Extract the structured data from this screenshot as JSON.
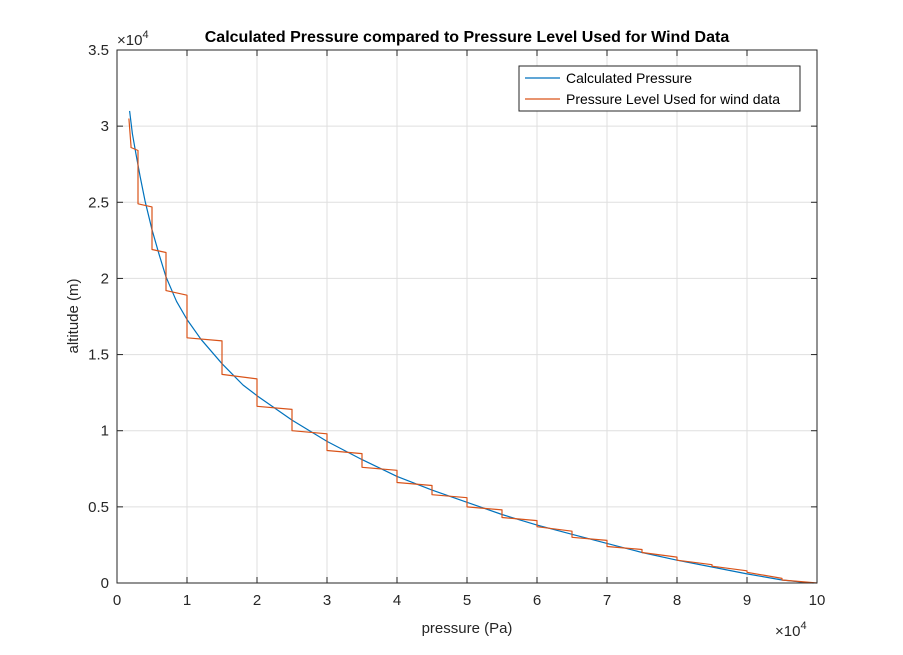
{
  "chart_data": {
    "type": "line",
    "title": "Calculated Pressure compared to Pressure Level Used for Wind Data",
    "xlabel": "pressure (Pa)",
    "ylabel": "altitude (m)",
    "x_exponent_label": "×10",
    "x_exponent": "4",
    "y_exponent_label": "×10",
    "y_exponent": "4",
    "x_scale": 10000,
    "y_scale": 10000,
    "xlim": [
      0,
      100000
    ],
    "ylim": [
      0,
      35000
    ],
    "xticks": [
      0,
      10000,
      20000,
      30000,
      40000,
      50000,
      60000,
      70000,
      80000,
      90000,
      100000
    ],
    "xticklabels": [
      "0",
      "1",
      "2",
      "3",
      "4",
      "5",
      "6",
      "7",
      "8",
      "9",
      "10"
    ],
    "yticks": [
      0,
      5000,
      10000,
      15000,
      20000,
      25000,
      30000,
      35000
    ],
    "yticklabels": [
      "0",
      "0.5",
      "1",
      "1.5",
      "2",
      "2.5",
      "3",
      "3.5"
    ],
    "grid": true,
    "legend_position": "top-right",
    "series": [
      {
        "name": "Calculated Pressure",
        "color": "#0072bd",
        "x": [
          1800,
          2200,
          2700,
          3300,
          4000,
          5000,
          6000,
          7000,
          8500,
          10000,
          12000,
          15000,
          18000,
          20000,
          25000,
          30000,
          35000,
          40000,
          45000,
          50000,
          55000,
          60000,
          65000,
          70000,
          75000,
          80000,
          85000,
          90000,
          95000,
          98000,
          99500
        ],
        "y": [
          31000,
          29500,
          28200,
          26700,
          25100,
          23200,
          21600,
          20100,
          18500,
          17300,
          16000,
          14400,
          13000,
          12300,
          10700,
          9300,
          8100,
          7000,
          6100,
          5300,
          4500,
          3800,
          3200,
          2600,
          2000,
          1500,
          1050,
          600,
          200,
          50,
          0
        ]
      },
      {
        "name": "Pressure Level Used for wind data",
        "color": "#d95319",
        "x": [
          1700,
          2000,
          2000,
          3000,
          3000,
          5000,
          5000,
          7000,
          7000,
          10000,
          10000,
          15000,
          15000,
          20000,
          20000,
          25000,
          25000,
          30000,
          30000,
          35000,
          35000,
          40000,
          40000,
          45000,
          45000,
          50000,
          50000,
          55000,
          55000,
          60000,
          60000,
          65000,
          65000,
          70000,
          70000,
          75000,
          75000,
          80000,
          80000,
          85000,
          85000,
          90000,
          90000,
          95000,
          95000,
          100000
        ],
        "y": [
          30500,
          28700,
          28600,
          28400,
          24900,
          24700,
          21900,
          21700,
          19200,
          18900,
          16100,
          15900,
          13700,
          13400,
          11600,
          11400,
          10000,
          9800,
          8700,
          8500,
          7600,
          7400,
          6600,
          6400,
          5800,
          5600,
          5000,
          4800,
          4300,
          4100,
          3700,
          3400,
          3000,
          2800,
          2400,
          2200,
          2000,
          1700,
          1500,
          1200,
          1100,
          800,
          700,
          300,
          200,
          0
        ]
      }
    ]
  }
}
